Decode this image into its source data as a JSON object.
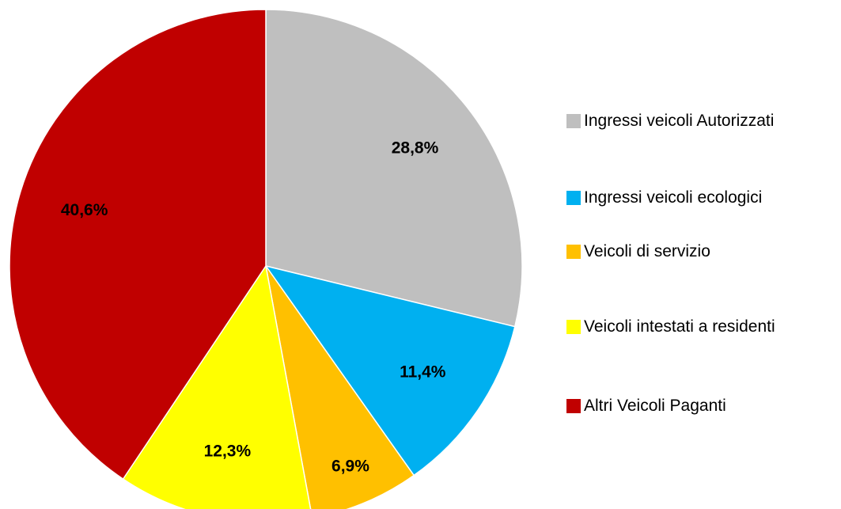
{
  "chart_data": {
    "type": "pie",
    "categories": [
      "Ingressi veicoli Autorizzati",
      "Ingressi veicoli ecologici",
      "Veicoli di servizio",
      "Veicoli intestati a residenti",
      "Altri Veicoli Paganti"
    ],
    "values": [
      28.8,
      11.4,
      6.9,
      12.3,
      40.6
    ],
    "value_labels": [
      "28,8%",
      "11,4%",
      "6,9%",
      "12,3%",
      "40,6%"
    ],
    "colors": [
      "#bfbfbf",
      "#00b0f0",
      "#ffc000",
      "#ffff00",
      "#c00000"
    ],
    "legend": "right"
  }
}
